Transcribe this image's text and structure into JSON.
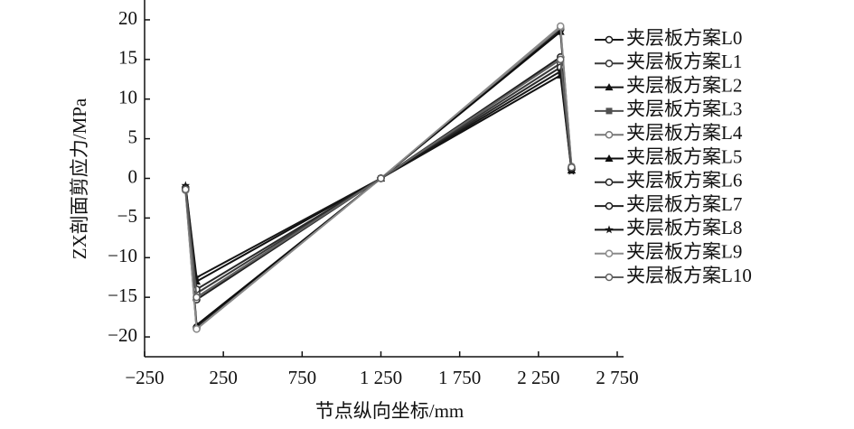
{
  "chart_data": {
    "type": "line",
    "xlabel": "节点纵向坐标/mm",
    "ylabel": "ZX剖面剪应力/MPa",
    "x": [
      10,
      80,
      1250,
      2390,
      2460
    ],
    "xlim": [
      -250,
      2750
    ],
    "xticks": [
      {
        "value": -250,
        "label": "−250"
      },
      250,
      750,
      {
        "value": 1250,
        "label": "1 250"
      },
      {
        "value": 1750,
        "label": "1 750"
      },
      {
        "value": 2250,
        "label": "2 250"
      },
      {
        "value": 2750,
        "label": "2 750"
      }
    ],
    "ylim": [
      -22.5,
      22.5
    ],
    "yticks": [
      {
        "value": -20,
        "label": "−20"
      },
      {
        "value": -15,
        "label": "−15"
      },
      {
        "value": -10,
        "label": "−10"
      },
      {
        "value": -5,
        "label": "−5"
      },
      0,
      5,
      10,
      15,
      20
    ],
    "legend": "right",
    "series": [
      {
        "name": "夹层板方案L0",
        "color": "#1a1a1a",
        "marker": "circle",
        "values": [
          -1.2,
          -18.8,
          0,
          18.8,
          1.2
        ]
      },
      {
        "name": "夹层板方案L1",
        "color": "#3a3a3a",
        "marker": "circle",
        "values": [
          -1.3,
          -14.5,
          0,
          14.5,
          1.3
        ]
      },
      {
        "name": "夹层板方案L2",
        "color": "#111111",
        "marker": "triangle",
        "values": [
          -1.0,
          -13,
          0,
          13,
          1.0
        ]
      },
      {
        "name": "夹层板方案L3",
        "color": "#505050",
        "marker": "square",
        "values": [
          -1.4,
          -15,
          0,
          15,
          1.4
        ]
      },
      {
        "name": "夹层板方案L4",
        "color": "#777777",
        "marker": "circle",
        "values": [
          -1.5,
          -19,
          0,
          19,
          1.5
        ]
      },
      {
        "name": "夹层板方案L5",
        "color": "#0d0d0d",
        "marker": "triangle",
        "values": [
          -1.1,
          -18.5,
          0,
          18.5,
          1.1
        ]
      },
      {
        "name": "夹层板方案L6",
        "color": "#2a2a2a",
        "marker": "circle",
        "values": [
          -1.2,
          -14,
          0,
          14,
          1.2
        ]
      },
      {
        "name": "夹层板方案L7",
        "color": "#202020",
        "marker": "circle",
        "values": [
          -1.3,
          -15.3,
          0,
          15.3,
          1.3
        ]
      },
      {
        "name": "夹层板方案L8",
        "color": "#161616",
        "marker": "star",
        "values": [
          -0.9,
          -12.5,
          0,
          13.5,
          0.9
        ]
      },
      {
        "name": "夹层板方案L9",
        "color": "#8a8a8a",
        "marker": "circle",
        "values": [
          -1.5,
          -19,
          0,
          19.2,
          1.5
        ]
      },
      {
        "name": "夹层板方案L10",
        "color": "#606060",
        "marker": "circle",
        "values": [
          -1.4,
          -15,
          0,
          15,
          1.4
        ]
      }
    ]
  }
}
